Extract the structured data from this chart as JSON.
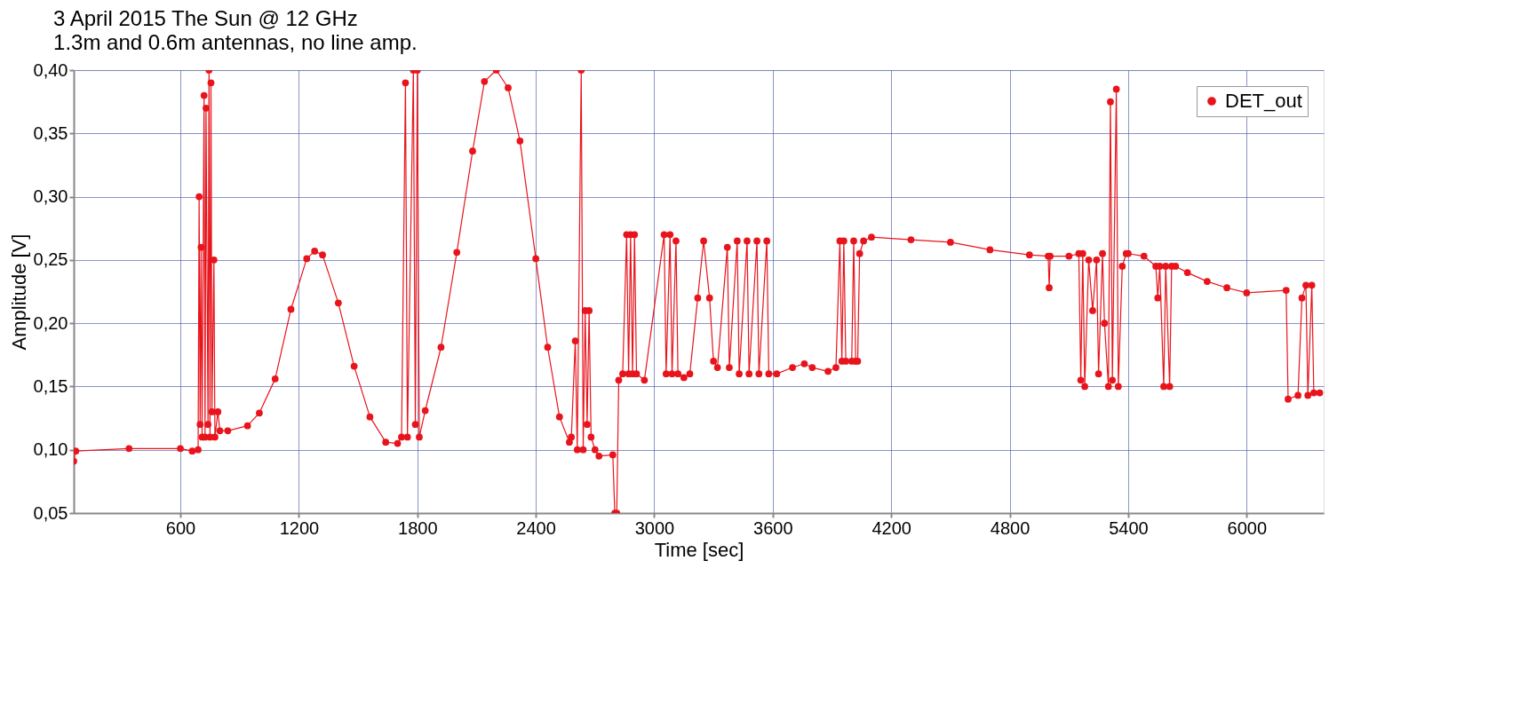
{
  "chart_data": {
    "type": "line",
    "title": "3 April 2015 The Sun @ 12 GHz",
    "subtitle": "1.3m and 0.6m antennas,  no line amp.",
    "xlabel": "Time [sec]",
    "ylabel": "Amplitude [V]",
    "series": [
      {
        "name": "DET_out",
        "color": "#e8141c",
        "x": [
          60,
          70,
          340,
          600,
          660,
          690,
          695,
          700,
          705,
          710,
          720,
          725,
          730,
          740,
          745,
          750,
          755,
          760,
          770,
          775,
          790,
          800,
          840,
          940,
          1000,
          1080,
          1160,
          1240,
          1280,
          1320,
          1400,
          1480,
          1560,
          1640,
          1700,
          1720,
          1740,
          1750,
          1780,
          1790,
          1800,
          1810,
          1840,
          1920,
          2000,
          2080,
          2140,
          2200,
          2260,
          2320,
          2400,
          2460,
          2520,
          2570,
          2580,
          2600,
          2610,
          2630,
          2640,
          2650,
          2660,
          2670,
          2680,
          2700,
          2720,
          2790,
          2800,
          2810,
          2820,
          2840,
          2860,
          2870,
          2880,
          2890,
          2900,
          2910,
          2950,
          3050,
          3060,
          3080,
          3090,
          3110,
          3120,
          3150,
          3180,
          3220,
          3250,
          3280,
          3300,
          3320,
          3370,
          3380,
          3420,
          3430,
          3470,
          3480,
          3520,
          3530,
          3570,
          3580,
          3620,
          3700,
          3760,
          3800,
          3880,
          3920,
          3940,
          3950,
          3960,
          3970,
          4000,
          4010,
          4020,
          4030,
          4040,
          4060,
          4100,
          4300,
          4500,
          4700,
          4900,
          4995,
          5000,
          5005,
          5100,
          5150,
          5160,
          5170,
          5180,
          5200,
          5220,
          5240,
          5250,
          5270,
          5280,
          5300,
          5310,
          5320,
          5340,
          5350,
          5370,
          5390,
          5400,
          5480,
          5540,
          5550,
          5560,
          5580,
          5590,
          5610,
          5620,
          5640,
          5700,
          5800,
          5900,
          6000,
          6200,
          6210,
          6260,
          6280,
          6300,
          6310,
          6330,
          6340,
          6370
        ],
        "values": [
          0.091,
          0.099,
          0.101,
          0.101,
          0.099,
          0.1,
          0.3,
          0.12,
          0.26,
          0.11,
          0.38,
          0.11,
          0.37,
          0.12,
          0.4,
          0.11,
          0.39,
          0.13,
          0.25,
          0.11,
          0.13,
          0.115,
          0.115,
          0.119,
          0.129,
          0.156,
          0.211,
          0.251,
          0.257,
          0.254,
          0.216,
          0.166,
          0.126,
          0.106,
          0.105,
          0.11,
          0.39,
          0.11,
          0.4,
          0.12,
          0.4,
          0.11,
          0.131,
          0.181,
          0.256,
          0.336,
          0.391,
          0.4,
          0.386,
          0.344,
          0.251,
          0.181,
          0.126,
          0.106,
          0.11,
          0.186,
          0.1,
          0.4,
          0.1,
          0.21,
          0.12,
          0.21,
          0.11,
          0.1,
          0.095,
          0.096,
          0.05,
          0.05,
          0.155,
          0.16,
          0.27,
          0.16,
          0.27,
          0.16,
          0.27,
          0.16,
          0.155,
          0.27,
          0.16,
          0.27,
          0.16,
          0.265,
          0.16,
          0.157,
          0.16,
          0.22,
          0.265,
          0.22,
          0.17,
          0.165,
          0.26,
          0.165,
          0.265,
          0.16,
          0.265,
          0.16,
          0.265,
          0.16,
          0.265,
          0.16,
          0.16,
          0.165,
          0.168,
          0.165,
          0.162,
          0.165,
          0.265,
          0.17,
          0.265,
          0.17,
          0.17,
          0.265,
          0.17,
          0.17,
          0.255,
          0.265,
          0.268,
          0.266,
          0.264,
          0.258,
          0.254,
          0.253,
          0.228,
          0.253,
          0.253,
          0.255,
          0.155,
          0.255,
          0.15,
          0.25,
          0.21,
          0.25,
          0.16,
          0.255,
          0.2,
          0.15,
          0.375,
          0.155,
          0.385,
          0.15,
          0.245,
          0.255,
          0.255,
          0.253,
          0.245,
          0.22,
          0.245,
          0.15,
          0.245,
          0.15,
          0.245,
          0.245,
          0.24,
          0.233,
          0.228,
          0.224,
          0.226,
          0.14,
          0.143,
          0.22,
          0.23,
          0.143,
          0.23,
          0.145,
          0.145
        ]
      }
    ],
    "xlim": [
      60,
      6390
    ],
    "xticks": [
      600,
      1200,
      1800,
      2400,
      3000,
      3600,
      4200,
      4800,
      5400,
      6000
    ],
    "ylim": [
      0.05,
      0.4
    ],
    "yticks": [
      {
        "value": 0.05,
        "label": "0,05"
      },
      {
        "value": 0.1,
        "label": "0,10"
      },
      {
        "value": 0.15,
        "label": "0,15"
      },
      {
        "value": 0.2,
        "label": "0,20"
      },
      {
        "value": 0.25,
        "label": "0,25"
      },
      {
        "value": 0.3,
        "label": "0,30"
      },
      {
        "value": 0.35,
        "label": "0,35"
      },
      {
        "value": 0.4,
        "label": "0,40"
      }
    ],
    "grid": true,
    "legend": "top right",
    "marker": "circle",
    "line_style": "solid"
  }
}
